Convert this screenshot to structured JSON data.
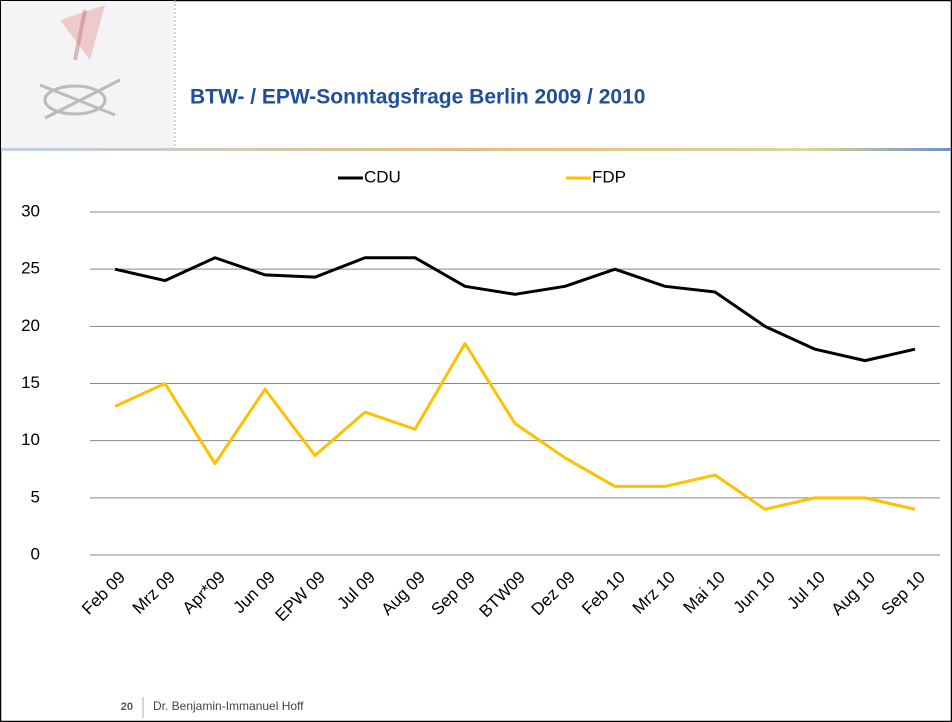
{
  "chart_data": {
    "type": "line",
    "title": "BTW- / EPW-Sonntagsfrage Berlin 2009 / 2010",
    "categories": [
      "Feb 09",
      "Mrz 09",
      "Apr*09",
      "Jun 09",
      "EPW 09",
      "Jul 09",
      "Aug 09",
      "Sep 09",
      "BTW09",
      "Dez 09",
      "Feb 10",
      "Mrz 10",
      "Mai 10",
      "Jun 10",
      "Jul 10",
      "Aug 10",
      "Sep 10"
    ],
    "series": [
      {
        "name": "CDU",
        "color": "#000000",
        "values": [
          25,
          24,
          26,
          24.5,
          24.3,
          26,
          26,
          23.5,
          22.8,
          23.5,
          25,
          23.5,
          23,
          20,
          18,
          17,
          18
        ]
      },
      {
        "name": "FDP",
        "color": "#ffc000",
        "values": [
          13,
          15,
          8,
          14.5,
          8.7,
          12.5,
          11,
          18.5,
          11.5,
          8.5,
          6,
          6,
          7,
          4,
          5,
          5,
          4
        ]
      }
    ],
    "ylim": [
      0,
      30
    ],
    "yticks": [
      0,
      5,
      10,
      15,
      20,
      25,
      30
    ],
    "grid": true,
    "legend": "top"
  },
  "footer": {
    "page": "20",
    "author": "Dr. Benjamin-Immanuel Hoff"
  }
}
